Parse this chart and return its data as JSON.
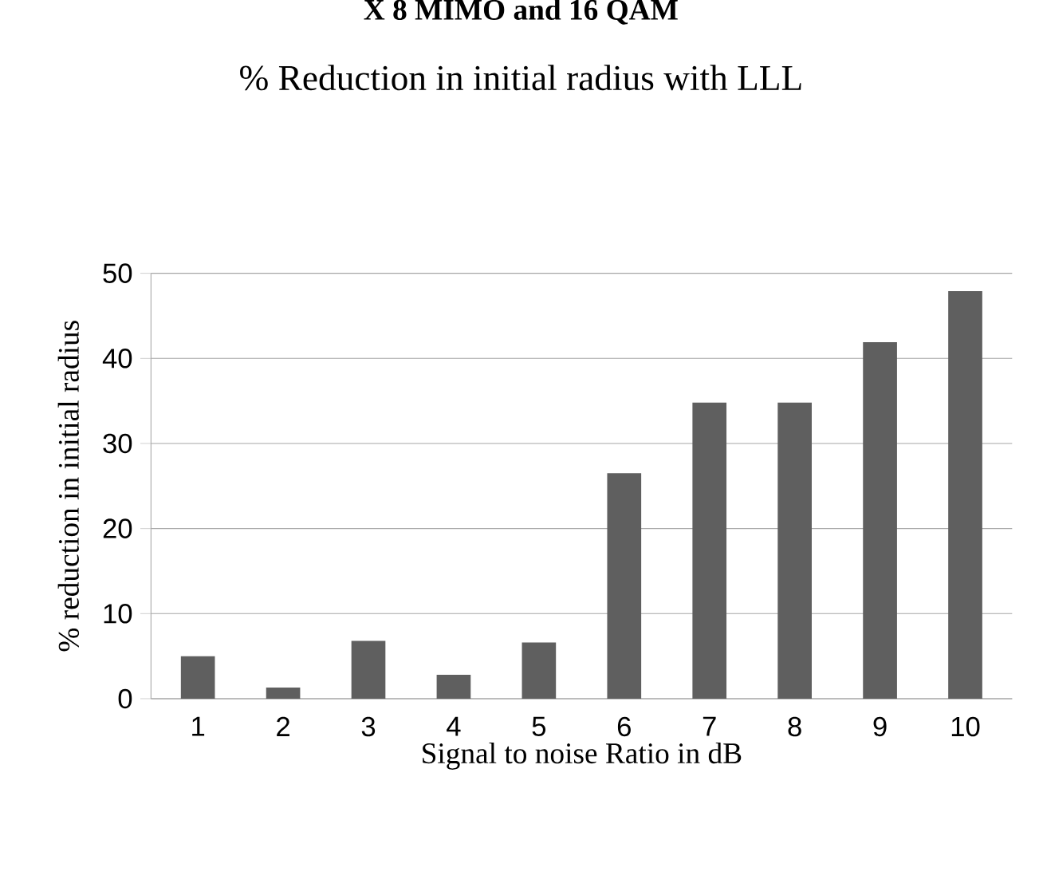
{
  "chart_data": {
    "type": "bar",
    "title": "% Reduction in initial radius with LLL",
    "annotations": [
      "X 8 MIMO and 16 QAM"
    ],
    "xlabel": "Signal to noise Ratio in dB",
    "ylabel": "% reduction in initial radius",
    "categories": [
      "1",
      "2",
      "3",
      "4",
      "5",
      "6",
      "7",
      "8",
      "9",
      "10"
    ],
    "values": [
      5.0,
      1.3,
      6.8,
      2.8,
      6.6,
      26.5,
      34.8,
      34.8,
      41.9,
      47.9
    ],
    "color": "#5f5f5f",
    "ylim": [
      0,
      50
    ],
    "yticks": [
      0,
      10,
      20,
      30,
      40,
      50
    ],
    "grid": "y"
  }
}
